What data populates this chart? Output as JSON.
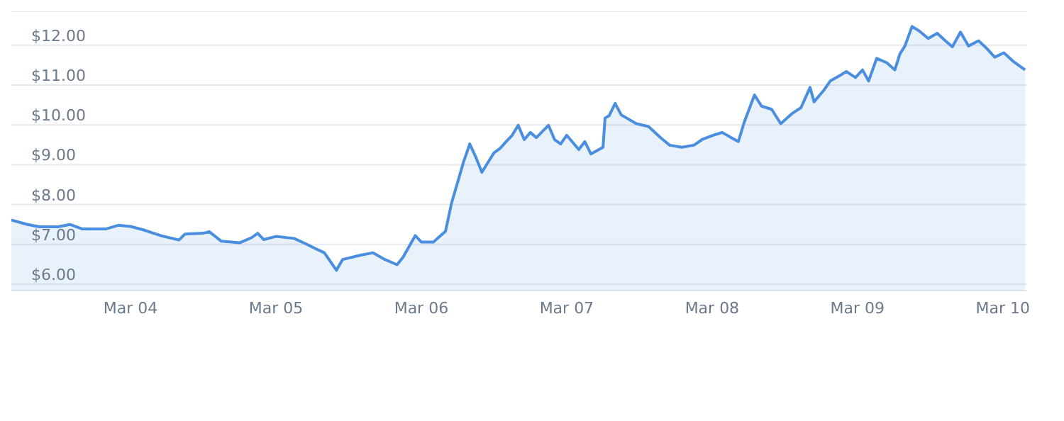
{
  "chart_data": {
    "type": "area",
    "color": "#4a8ee0",
    "x": [
      "--03-03T04:20",
      "--03-03T07:00",
      "--03-03T09:00",
      "--03-03T12:00",
      "--03-03T14:00",
      "--03-03T16:00",
      "--03-03T20:00",
      "--03-03T22:00",
      "--03-04T00:00",
      "--03-04T02:00",
      "--03-04T05:00",
      "--03-04T08:00",
      "--03-04T09:00",
      "--03-04T12:00",
      "--03-04T13:00",
      "--03-04T15:00",
      "--03-04T18:00",
      "--03-04T20:00",
      "--03-04T21:00",
      "--03-04T22:00",
      "--03-05T00:00",
      "--03-05T03:00",
      "--03-05T05:00",
      "--03-05T07:00",
      "--03-05T08:00",
      "--03-05T10:00",
      "--03-05T11:00",
      "--03-05T14:00",
      "--03-05T16:00",
      "--03-05T18:00",
      "--03-05T20:00",
      "--03-05T21:00",
      "--03-05T23:00",
      "--03-06T00:00",
      "--03-06T02:00",
      "--03-06T04:00",
      "--03-06T05:00",
      "--03-06T07:00",
      "--03-06T08:00",
      "--03-06T09:00",
      "--03-06T10:00",
      "--03-06T12:00",
      "--03-06T13:00",
      "--03-06T14:00",
      "--03-06T15:00",
      "--03-06T16:00",
      "--03-06T17:00",
      "--03-06T18:00",
      "--03-06T19:00",
      "--03-06T21:00",
      "--03-06T22:00",
      "--03-06T23:00",
      "--03-07T00:00",
      "--03-07T02:00",
      "--03-07T03:00",
      "--03-07T04:00",
      "--03-07T06:00",
      "--03-07T06:20",
      "--03-07T07:00",
      "--03-07T08:00",
      "--03-07T09:00",
      "--03-07T11:30",
      "--03-07T13:30",
      "--03-07T15:30",
      "--03-07T17:00",
      "--03-07T19:00",
      "--03-07T21:00",
      "--03-07T22:20",
      "--03-08T00:10",
      "--03-08T01:40",
      "--03-08T03:10",
      "--03-08T04:20",
      "--03-08T05:20",
      "--03-08T07:00",
      "--03-08T08:10",
      "--03-08T09:50",
      "--03-08T11:20",
      "--03-08T13:10",
      "--03-08T14:40",
      "--03-08T16:10",
      "--03-08T16:50",
      "--03-08T18:30",
      "--03-08T19:30",
      "--03-08T21:00",
      "--03-08T22:10",
      "--03-08T23:40",
      "--03-09T00:50",
      "--03-09T01:50",
      "--03-09T03:10",
      "--03-09T04:50",
      "--03-09T06:10",
      "--03-09T07:00",
      "--03-09T07:50",
      "--03-09T09:00",
      "--03-09T10:10",
      "--03-09T11:40",
      "--03-09T13:10",
      "--03-09T14:40",
      "--03-09T15:40",
      "--03-09T17:00",
      "--03-09T18:20",
      "--03-09T20:00",
      "--03-09T21:20",
      "--03-09T22:40",
      "--03-10T00:10",
      "--03-10T01:40",
      "--03-10T03:40"
    ],
    "values": [
      7.61,
      7.5,
      7.44,
      7.44,
      7.5,
      7.39,
      7.39,
      7.48,
      7.45,
      7.37,
      7.22,
      7.11,
      7.26,
      7.28,
      7.32,
      7.08,
      7.04,
      7.17,
      7.28,
      7.12,
      7.2,
      7.15,
      7.01,
      6.86,
      6.79,
      6.35,
      6.62,
      6.73,
      6.79,
      6.62,
      6.49,
      6.68,
      7.22,
      7.06,
      7.06,
      7.33,
      8.04,
      9.08,
      9.52,
      9.19,
      8.81,
      9.3,
      9.41,
      9.58,
      9.74,
      9.99,
      9.63,
      9.81,
      9.68,
      9.99,
      9.63,
      9.52,
      9.74,
      9.38,
      9.58,
      9.27,
      9.44,
      10.17,
      10.23,
      10.54,
      10.25,
      10.03,
      9.96,
      9.68,
      9.49,
      9.44,
      9.49,
      9.63,
      9.74,
      9.81,
      9.68,
      9.58,
      10.08,
      10.75,
      10.47,
      10.39,
      10.03,
      10.28,
      10.43,
      10.94,
      10.58,
      10.88,
      11.1,
      11.23,
      11.34,
      11.19,
      11.38,
      11.1,
      11.67,
      11.56,
      11.38,
      11.78,
      11.98,
      12.47,
      12.36,
      12.17,
      12.3,
      12.09,
      11.96,
      12.33,
      11.98,
      12.11,
      11.92,
      11.7,
      11.81,
      11.6,
      11.38
    ],
    "xlim": [
      "--03-03T04:20",
      "--03-10T04:00"
    ],
    "xticks": [
      {
        "value": "--03-04",
        "label": "Mar 04"
      },
      {
        "value": "--03-05",
        "label": "Mar 05"
      },
      {
        "value": "--03-06",
        "label": "Mar 06"
      },
      {
        "value": "--03-07",
        "label": "Mar 07"
      },
      {
        "value": "--03-08",
        "label": "Mar 08"
      },
      {
        "value": "--03-09",
        "label": "Mar 09"
      },
      {
        "value": "--03-10",
        "label": "Mar 10"
      }
    ],
    "ylim": [
      5.84,
      12.85
    ],
    "yticks": [
      {
        "value": 6,
        "label": "$6.00"
      },
      {
        "value": 7,
        "label": "$7.00"
      },
      {
        "value": 8,
        "label": "$8.00"
      },
      {
        "value": 9,
        "label": "$9.00"
      },
      {
        "value": 10,
        "label": "$10.00"
      },
      {
        "value": 11,
        "label": "$11.00"
      },
      {
        "value": 12,
        "label": "$12.00"
      }
    ],
    "grid": "y"
  }
}
